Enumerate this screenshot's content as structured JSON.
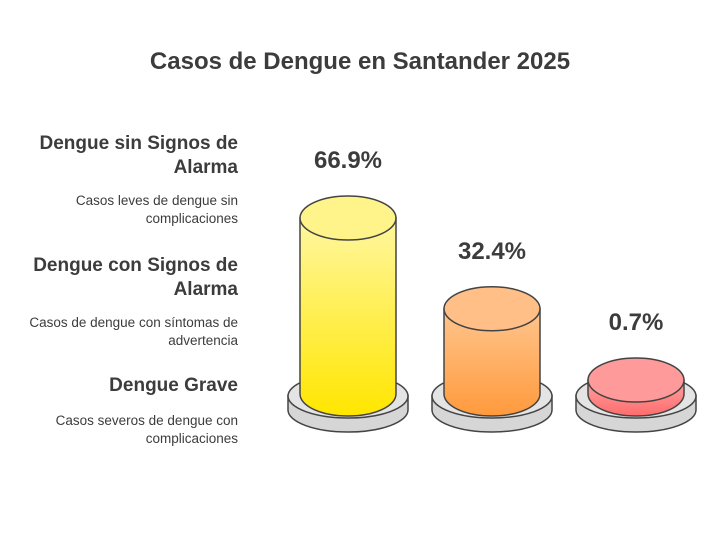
{
  "chart_data": {
    "type": "bar",
    "title": "Casos de Dengue en Santander 2025",
    "categories": [
      "Dengue sin Signos de Alarma",
      "Dengue con Signos de Alarma",
      "Dengue Grave"
    ],
    "descriptions": [
      "Casos leves de dengue sin complicaciones",
      "Casos de dengue con síntomas de advertencia",
      "Casos severos de dengue con complicaciones"
    ],
    "values": [
      66.9,
      32.4,
      0.7
    ],
    "value_labels": [
      "66.9%",
      "32.4%",
      "0.7%"
    ],
    "unit": "%",
    "colors": [
      {
        "top": "#fff7a0",
        "bottom": "#ffe600",
        "cap": "#fff48a"
      },
      {
        "top": "#ffc58e",
        "bottom": "#ff9a3c",
        "cap": "#ffbf87"
      },
      {
        "top": "#ffa2a2",
        "bottom": "#ff6c6c",
        "cap": "#ff9a9a"
      }
    ]
  }
}
